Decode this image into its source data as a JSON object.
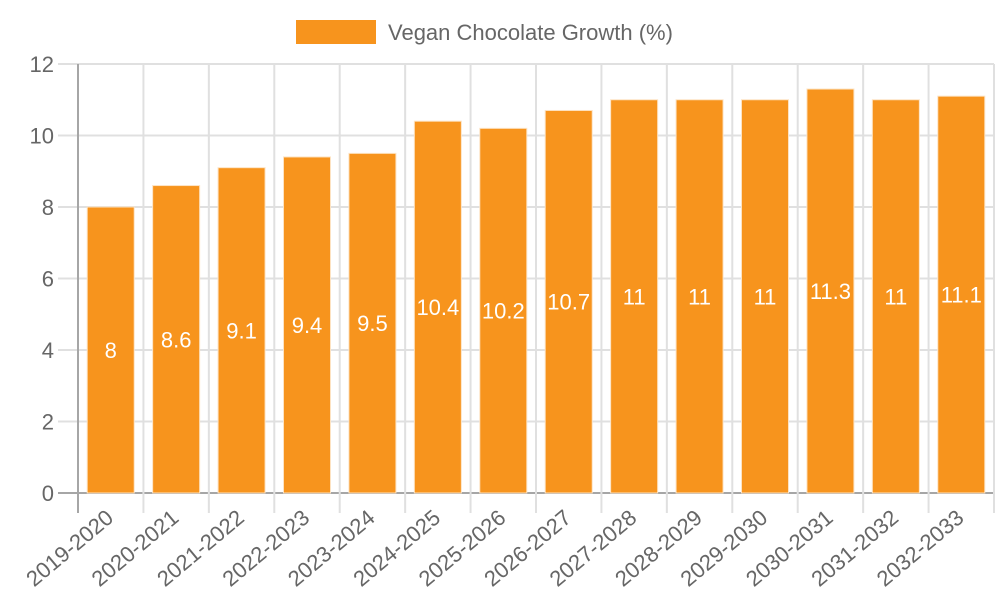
{
  "chart_data": {
    "type": "bar",
    "title": "",
    "legend": {
      "label": "Vegan Chocolate Growth (%)",
      "position": "top"
    },
    "categories": [
      "2019-2020",
      "2020-2021",
      "2021-2022",
      "2022-2023",
      "2023-2024",
      "2024-2025",
      "2025-2026",
      "2026-2027",
      "2027-2028",
      "2028-2029",
      "2029-2030",
      "2030-2031",
      "2031-2032",
      "2032-2033"
    ],
    "series": [
      {
        "name": "Vegan Chocolate Growth (%)",
        "values": [
          8,
          8.6,
          9.1,
          9.4,
          9.5,
          10.4,
          10.2,
          10.7,
          11,
          11,
          11,
          11.3,
          11,
          11.1
        ]
      }
    ],
    "xlabel": "",
    "ylabel": "",
    "ylim": [
      0,
      12
    ],
    "yticks": [
      0,
      2,
      4,
      6,
      8,
      10,
      12
    ],
    "grid": true,
    "colors": {
      "bar": "#F7941D",
      "bar_border": "#FDE3C3",
      "grid": "#E0E0E0",
      "axis": "#A6A6A6",
      "text": "#666666",
      "label": "#FFFFFF"
    }
  }
}
